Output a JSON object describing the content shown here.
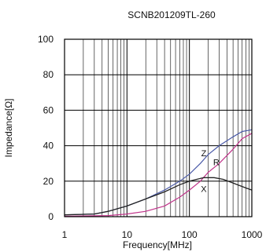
{
  "chart_data": {
    "type": "line",
    "title": "SCNB201209TL-260",
    "xlabel": "Frequency[MHz]",
    "ylabel": "Impedance[Ω]",
    "xscale": "log",
    "xlim": [
      1,
      1000
    ],
    "ylim": [
      0,
      100
    ],
    "x_ticks": [
      {
        "value": 1,
        "label": "1"
      },
      {
        "value": 10,
        "label": "10"
      },
      {
        "value": 100,
        "label": "100"
      },
      {
        "value": 1000,
        "label": "1000"
      }
    ],
    "y_ticks": [
      {
        "value": 0,
        "label": "0"
      },
      {
        "value": 20,
        "label": "20"
      },
      {
        "value": 40,
        "label": "40"
      },
      {
        "value": 60,
        "label": "60"
      },
      {
        "value": 80,
        "label": "80"
      },
      {
        "value": 100,
        "label": "100"
      }
    ],
    "grid": true,
    "series": [
      {
        "name": "Z",
        "color": "#4a5aa8",
        "dash": "solid",
        "points": [
          [
            1,
            1
          ],
          [
            3,
            1.5
          ],
          [
            5,
            3
          ],
          [
            10,
            6
          ],
          [
            20,
            10
          ],
          [
            40,
            15
          ],
          [
            70,
            20
          ],
          [
            100,
            24
          ],
          [
            150,
            30
          ],
          [
            200,
            35
          ],
          [
            300,
            40
          ],
          [
            500,
            45
          ],
          [
            700,
            48
          ],
          [
            1000,
            49
          ]
        ]
      },
      {
        "name": "R",
        "color": "#c0338a",
        "dash": "solid",
        "points": [
          [
            1,
            0.2
          ],
          [
            5,
            0.6
          ],
          [
            10,
            1.5
          ],
          [
            20,
            3
          ],
          [
            40,
            6
          ],
          [
            70,
            11
          ],
          [
            100,
            15
          ],
          [
            150,
            20
          ],
          [
            200,
            25
          ],
          [
            300,
            30
          ],
          [
            500,
            38
          ],
          [
            700,
            44
          ],
          [
            1000,
            47
          ]
        ]
      },
      {
        "name": "X",
        "color": "#222222",
        "dash": "solid",
        "points": [
          [
            1,
            1
          ],
          [
            3,
            1.5
          ],
          [
            5,
            3
          ],
          [
            10,
            6
          ],
          [
            20,
            10
          ],
          [
            40,
            14
          ],
          [
            70,
            18
          ],
          [
            100,
            20
          ],
          [
            130,
            21
          ],
          [
            170,
            22
          ],
          [
            250,
            22
          ],
          [
            350,
            21
          ],
          [
            500,
            19
          ],
          [
            700,
            17
          ],
          [
            1000,
            15
          ]
        ]
      }
    ],
    "annotations": [
      {
        "text": "Z",
        "x": 170,
        "y": 34
      },
      {
        "text": "R",
        "x": 270,
        "y": 29
      },
      {
        "text": "X",
        "x": 170,
        "y": 14
      }
    ]
  }
}
